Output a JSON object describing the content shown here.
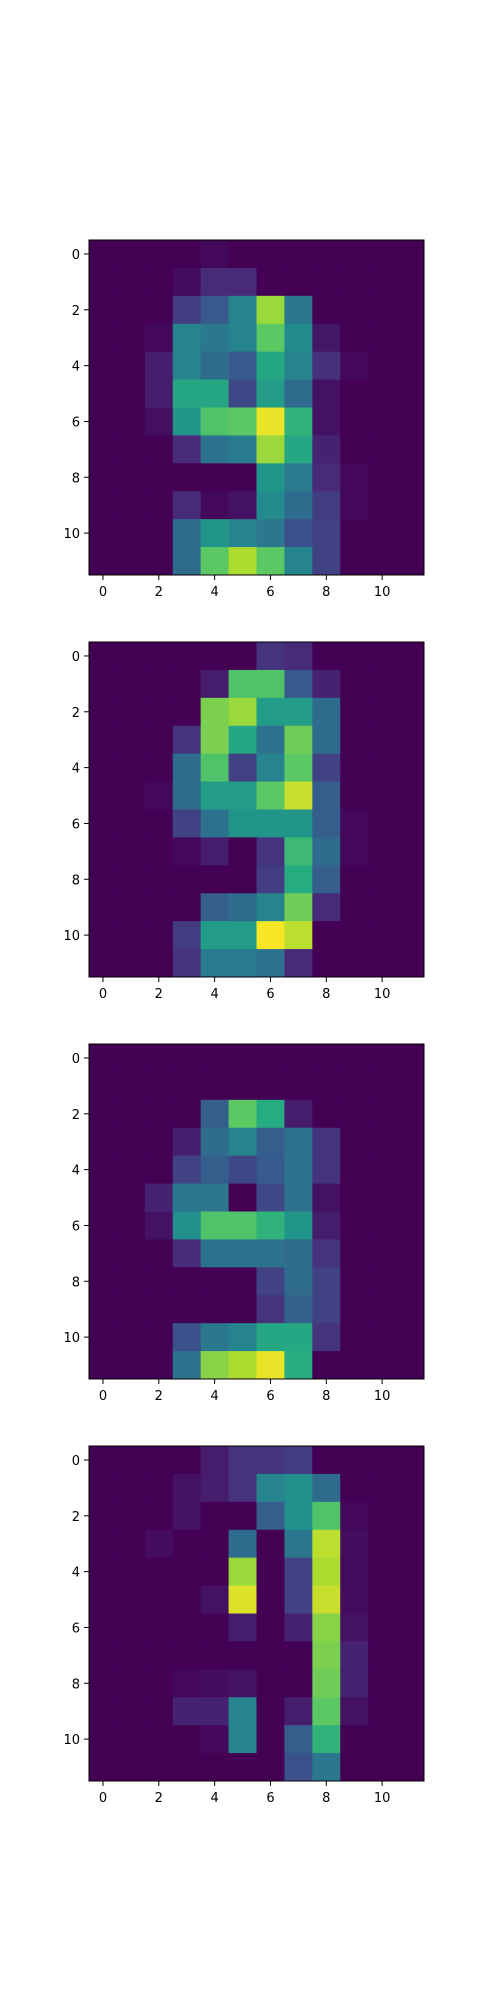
{
  "chart_data": [
    {
      "type": "heatmap",
      "title": "",
      "xlabel": "",
      "ylabel": "",
      "colormap": "viridis",
      "xlim": [
        -0.5,
        11.5
      ],
      "ylim": [
        11.5,
        -0.5
      ],
      "xticks": [
        "0",
        "2",
        "4",
        "6",
        "8",
        "10"
      ],
      "yticks": [
        "0",
        "2",
        "4",
        "6",
        "8",
        "10"
      ],
      "values": [
        [
          0,
          0,
          0,
          0,
          0.02,
          0,
          0,
          0,
          0,
          0,
          0,
          0
        ],
        [
          0,
          0,
          0,
          0.03,
          0.12,
          0.12,
          0,
          0,
          0,
          0,
          0,
          0
        ],
        [
          0,
          0,
          0,
          0.18,
          0.28,
          0.45,
          0.85,
          0.4,
          0,
          0,
          0,
          0
        ],
        [
          0,
          0,
          0.02,
          0.45,
          0.4,
          0.45,
          0.75,
          0.48,
          0.06,
          0,
          0,
          0
        ],
        [
          0,
          0,
          0.08,
          0.45,
          0.35,
          0.28,
          0.6,
          0.45,
          0.14,
          0.02,
          0,
          0
        ],
        [
          0,
          0,
          0.08,
          0.6,
          0.6,
          0.22,
          0.55,
          0.35,
          0.05,
          0,
          0,
          0
        ],
        [
          0,
          0,
          0.04,
          0.52,
          0.72,
          0.75,
          0.97,
          0.65,
          0.05,
          0,
          0,
          0
        ],
        [
          0,
          0,
          0,
          0.12,
          0.38,
          0.42,
          0.85,
          0.6,
          0.1,
          0,
          0,
          0
        ],
        [
          0,
          0,
          0,
          0,
          0,
          0,
          0.52,
          0.42,
          0.12,
          0.02,
          0,
          0
        ],
        [
          0,
          0,
          0,
          0.12,
          0.02,
          0.05,
          0.48,
          0.36,
          0.18,
          0.02,
          0,
          0
        ],
        [
          0,
          0,
          0,
          0.35,
          0.52,
          0.45,
          0.4,
          0.25,
          0.2,
          0,
          0,
          0
        ],
        [
          0,
          0,
          0,
          0.35,
          0.75,
          0.88,
          0.75,
          0.45,
          0.2,
          0,
          0,
          0
        ]
      ]
    },
    {
      "type": "heatmap",
      "title": "",
      "xlabel": "",
      "ylabel": "",
      "colormap": "viridis",
      "xlim": [
        -0.5,
        11.5
      ],
      "ylim": [
        11.5,
        -0.5
      ],
      "xticks": [
        "0",
        "2",
        "4",
        "6",
        "8",
        "10"
      ],
      "yticks": [
        "0",
        "2",
        "4",
        "6",
        "8",
        "10"
      ],
      "values": [
        [
          0,
          0,
          0,
          0,
          0,
          0,
          0.15,
          0.12,
          0,
          0,
          0,
          0
        ],
        [
          0,
          0,
          0,
          0,
          0.08,
          0.72,
          0.72,
          0.28,
          0.1,
          0,
          0,
          0
        ],
        [
          0,
          0,
          0,
          0,
          0.8,
          0.85,
          0.55,
          0.55,
          0.35,
          0,
          0,
          0
        ],
        [
          0,
          0,
          0,
          0.15,
          0.8,
          0.6,
          0.38,
          0.78,
          0.35,
          0,
          0,
          0
        ],
        [
          0,
          0,
          0,
          0.35,
          0.72,
          0.2,
          0.45,
          0.75,
          0.2,
          0,
          0,
          0
        ],
        [
          0,
          0,
          0.02,
          0.35,
          0.55,
          0.55,
          0.75,
          0.92,
          0.3,
          0,
          0,
          0
        ],
        [
          0,
          0,
          0,
          0.2,
          0.38,
          0.52,
          0.52,
          0.52,
          0.3,
          0.02,
          0,
          0
        ],
        [
          0,
          0,
          0,
          0.02,
          0.08,
          0,
          0.15,
          0.68,
          0.35,
          0.02,
          0,
          0
        ],
        [
          0,
          0,
          0,
          0,
          0,
          0,
          0.18,
          0.62,
          0.3,
          0,
          0,
          0
        ],
        [
          0,
          0,
          0,
          0,
          0.3,
          0.35,
          0.45,
          0.78,
          0.12,
          0,
          0,
          0
        ],
        [
          0,
          0,
          0,
          0.18,
          0.55,
          0.55,
          0.99,
          0.9,
          0,
          0,
          0,
          0
        ],
        [
          0,
          0,
          0,
          0.15,
          0.42,
          0.42,
          0.38,
          0.12,
          0,
          0,
          0,
          0
        ]
      ]
    },
    {
      "type": "heatmap",
      "title": "",
      "xlabel": "",
      "ylabel": "",
      "colormap": "viridis",
      "xlim": [
        -0.5,
        11.5
      ],
      "ylim": [
        11.5,
        -0.5
      ],
      "xticks": [
        "0",
        "2",
        "4",
        "6",
        "8",
        "10"
      ],
      "yticks": [
        "0",
        "2",
        "4",
        "6",
        "8",
        "10"
      ],
      "values": [
        [
          0,
          0,
          0,
          0,
          0,
          0,
          0,
          0,
          0,
          0,
          0,
          0
        ],
        [
          0,
          0,
          0,
          0,
          0,
          0,
          0,
          0,
          0,
          0,
          0,
          0
        ],
        [
          0,
          0,
          0,
          0,
          0.3,
          0.75,
          0.62,
          0.08,
          0,
          0,
          0,
          0
        ],
        [
          0,
          0,
          0,
          0.08,
          0.35,
          0.45,
          0.3,
          0.38,
          0.15,
          0,
          0,
          0
        ],
        [
          0,
          0,
          0,
          0.2,
          0.3,
          0.22,
          0.28,
          0.38,
          0.15,
          0,
          0,
          0
        ],
        [
          0,
          0,
          0.1,
          0.4,
          0.4,
          0,
          0.22,
          0.38,
          0.05,
          0,
          0,
          0
        ],
        [
          0,
          0,
          0.05,
          0.5,
          0.72,
          0.72,
          0.65,
          0.52,
          0.08,
          0,
          0,
          0
        ],
        [
          0,
          0,
          0,
          0.12,
          0.38,
          0.38,
          0.38,
          0.35,
          0.15,
          0,
          0,
          0
        ],
        [
          0,
          0,
          0,
          0,
          0,
          0,
          0.2,
          0.35,
          0.2,
          0,
          0,
          0
        ],
        [
          0,
          0,
          0,
          0,
          0,
          0,
          0.15,
          0.32,
          0.2,
          0,
          0,
          0
        ],
        [
          0,
          0,
          0,
          0.25,
          0.4,
          0.45,
          0.6,
          0.6,
          0.15,
          0,
          0,
          0
        ],
        [
          0,
          0,
          0,
          0.38,
          0.82,
          0.88,
          0.97,
          0.62,
          0,
          0,
          0,
          0
        ]
      ]
    },
    {
      "type": "heatmap",
      "title": "",
      "xlabel": "",
      "ylabel": "",
      "colormap": "viridis",
      "xlim": [
        -0.5,
        11.5
      ],
      "ylim": [
        11.5,
        -0.5
      ],
      "xticks": [
        "0",
        "2",
        "4",
        "6",
        "8",
        "10"
      ],
      "yticks": [
        "0",
        "2",
        "4",
        "6",
        "8",
        "10"
      ],
      "values": [
        [
          0,
          0,
          0,
          0,
          0.08,
          0.15,
          0.15,
          0.18,
          0,
          0,
          0,
          0
        ],
        [
          0,
          0,
          0,
          0.05,
          0.08,
          0.15,
          0.45,
          0.5,
          0.35,
          0,
          0,
          0
        ],
        [
          0,
          0,
          0,
          0.05,
          0,
          0,
          0.3,
          0.5,
          0.72,
          0.02,
          0,
          0
        ],
        [
          0,
          0,
          0.03,
          0,
          0,
          0.35,
          0,
          0.4,
          0.9,
          0.03,
          0,
          0
        ],
        [
          0,
          0,
          0,
          0,
          0,
          0.85,
          0,
          0.2,
          0.88,
          0.03,
          0,
          0
        ],
        [
          0,
          0,
          0,
          0,
          0.05,
          0.95,
          0,
          0.2,
          0.92,
          0.03,
          0,
          0
        ],
        [
          0,
          0,
          0,
          0,
          0,
          0.08,
          0,
          0.1,
          0.82,
          0.05,
          0,
          0
        ],
        [
          0,
          0,
          0,
          0,
          0,
          0,
          0,
          0,
          0.8,
          0.1,
          0,
          0
        ],
        [
          0,
          0,
          0,
          0.02,
          0.03,
          0.05,
          0,
          0,
          0.78,
          0.1,
          0,
          0
        ],
        [
          0,
          0,
          0,
          0.1,
          0.1,
          0.45,
          0,
          0.08,
          0.75,
          0.05,
          0,
          0
        ],
        [
          0,
          0,
          0,
          0,
          0.02,
          0.45,
          0,
          0.3,
          0.65,
          0,
          0,
          0
        ],
        [
          0,
          0,
          0,
          0,
          0,
          0,
          0,
          0.25,
          0.4,
          0,
          0,
          0
        ]
      ]
    }
  ]
}
